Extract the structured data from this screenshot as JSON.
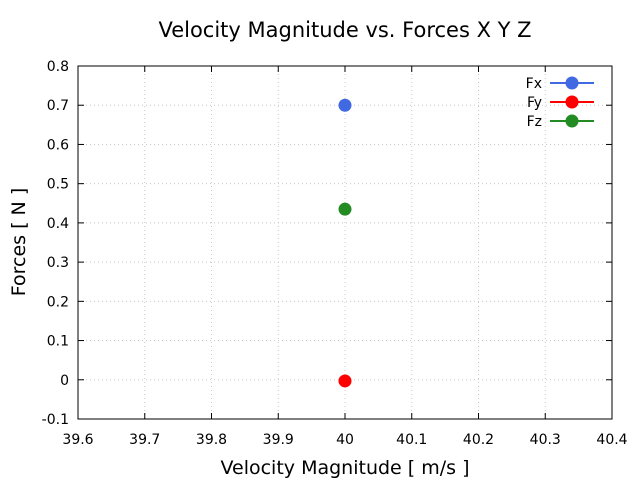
{
  "chart_data": {
    "type": "scatter",
    "title": "Velocity Magnitude vs. Forces X Y Z",
    "xlabel": "Velocity Magnitude [ m/s ]",
    "ylabel": "Forces [ N ]",
    "xlim": [
      39.6,
      40.4
    ],
    "ylim": [
      -0.1,
      0.8
    ],
    "xticks": [
      "39.6",
      "39.7",
      "39.8",
      "39.9",
      "40",
      "40.1",
      "40.2",
      "40.3",
      "40.4"
    ],
    "yticks": [
      "-0.1",
      "0",
      "0.1",
      "0.2",
      "0.3",
      "0.4",
      "0.5",
      "0.6",
      "0.7",
      "0.8"
    ],
    "grid": true,
    "legend_position": "top-right",
    "series": [
      {
        "name": "Fx",
        "color": "#4169e1",
        "x": [
          40
        ],
        "y": [
          0.7
        ]
      },
      {
        "name": "Fy",
        "color": "#ff0000",
        "x": [
          40
        ],
        "y": [
          -0.003
        ]
      },
      {
        "name": "Fz",
        "color": "#228b22",
        "x": [
          40
        ],
        "y": [
          0.435
        ]
      }
    ]
  }
}
